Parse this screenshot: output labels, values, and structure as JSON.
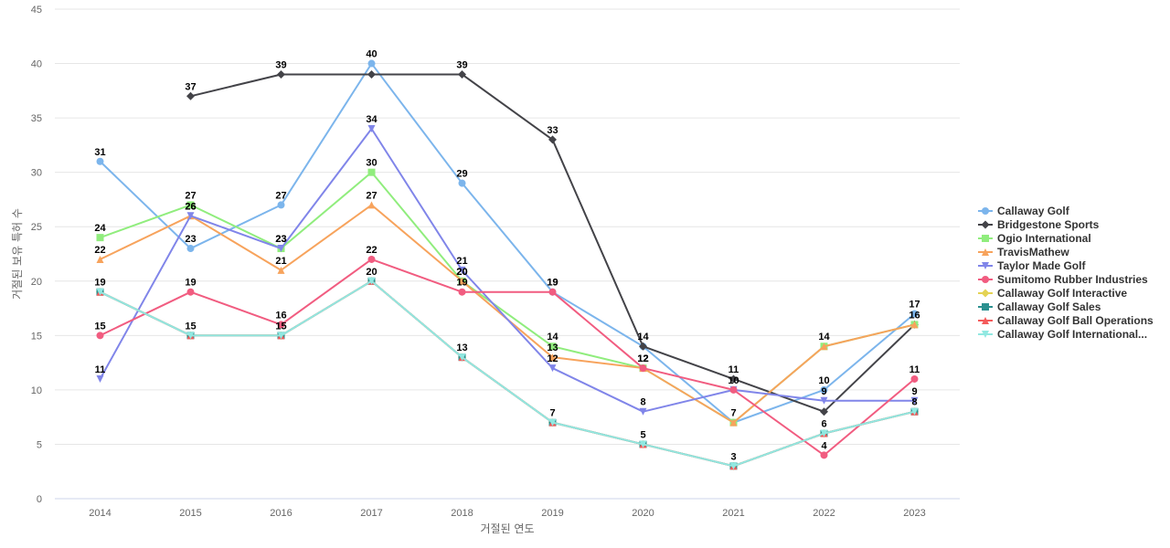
{
  "chart_data": {
    "type": "line",
    "title": "",
    "xlabel": "거절된 연도",
    "ylabel": "거절된 보유 특허 수",
    "categories": [
      "2014",
      "2015",
      "2016",
      "2017",
      "2018",
      "2019",
      "2020",
      "2021",
      "2022",
      "2023"
    ],
    "ylim": [
      0,
      45
    ],
    "yticks": [
      0,
      5,
      10,
      15,
      20,
      25,
      30,
      35,
      40,
      45
    ],
    "grid": true,
    "legend_position": "right",
    "series": [
      {
        "name": "Callaway Golf",
        "color": "#7cb5ec",
        "marker": "circle",
        "values": [
          31,
          23,
          27,
          40,
          29,
          19,
          14,
          7,
          10,
          17
        ]
      },
      {
        "name": "Bridgestone Sports",
        "color": "#434348",
        "marker": "diamond",
        "values": [
          null,
          37,
          39,
          39,
          39,
          33,
          14,
          11,
          8,
          16
        ]
      },
      {
        "name": "Ogio International",
        "color": "#90ed7d",
        "marker": "square",
        "values": [
          24,
          27,
          23,
          30,
          20,
          14,
          12,
          7,
          14,
          16
        ]
      },
      {
        "name": "TravisMathew",
        "color": "#f7a35c",
        "marker": "triangle",
        "values": [
          22,
          26,
          21,
          27,
          20,
          13,
          12,
          7,
          14,
          16
        ]
      },
      {
        "name": "Taylor Made Golf",
        "color": "#8085e9",
        "marker": "triangle-down",
        "values": [
          11,
          26,
          23,
          34,
          21,
          12,
          8,
          10,
          9,
          9
        ]
      },
      {
        "name": "Sumitomo Rubber Industries",
        "color": "#f15c80",
        "marker": "circle",
        "values": [
          15,
          19,
          16,
          22,
          19,
          19,
          12,
          10,
          4,
          11
        ]
      },
      {
        "name": "Callaway Golf Interactive",
        "color": "#e4d354",
        "marker": "diamond",
        "values": [
          19,
          15,
          15,
          20,
          13,
          7,
          5,
          3,
          6,
          8
        ]
      },
      {
        "name": "Callaway Golf Sales",
        "color": "#2b908f",
        "marker": "square",
        "values": [
          19,
          15,
          15,
          20,
          13,
          7,
          5,
          3,
          6,
          8
        ]
      },
      {
        "name": "Callaway Golf Ball Operations",
        "color": "#f45b5b",
        "marker": "triangle",
        "values": [
          19,
          15,
          15,
          20,
          13,
          7,
          5,
          3,
          6,
          8
        ]
      },
      {
        "name": "Callaway Golf International...",
        "color": "#91e8e1",
        "marker": "triangle-down",
        "values": [
          19,
          15,
          15,
          20,
          13,
          7,
          5,
          3,
          6,
          8
        ]
      }
    ],
    "data_labels": [
      {
        "series": 0,
        "points": [
          0,
          1,
          2,
          3,
          4,
          5,
          6,
          7,
          8,
          9
        ]
      },
      {
        "series": 1,
        "points": [
          1,
          2,
          4,
          5,
          7
        ]
      },
      {
        "series": 2,
        "points": [
          0,
          1,
          2,
          3,
          4,
          5,
          6,
          8,
          9
        ]
      },
      {
        "series": 3,
        "points": [
          0,
          1,
          2,
          3,
          4,
          5,
          6
        ]
      },
      {
        "series": 4,
        "points": [
          0,
          1,
          2,
          3,
          4,
          5,
          6,
          8,
          9
        ]
      },
      {
        "series": 5,
        "points": [
          0,
          1,
          2,
          3,
          4,
          5,
          6,
          7,
          8,
          9
        ]
      },
      {
        "series": 6,
        "points": [
          0,
          1,
          2,
          3,
          4,
          5,
          6,
          7,
          8,
          9
        ]
      }
    ]
  }
}
